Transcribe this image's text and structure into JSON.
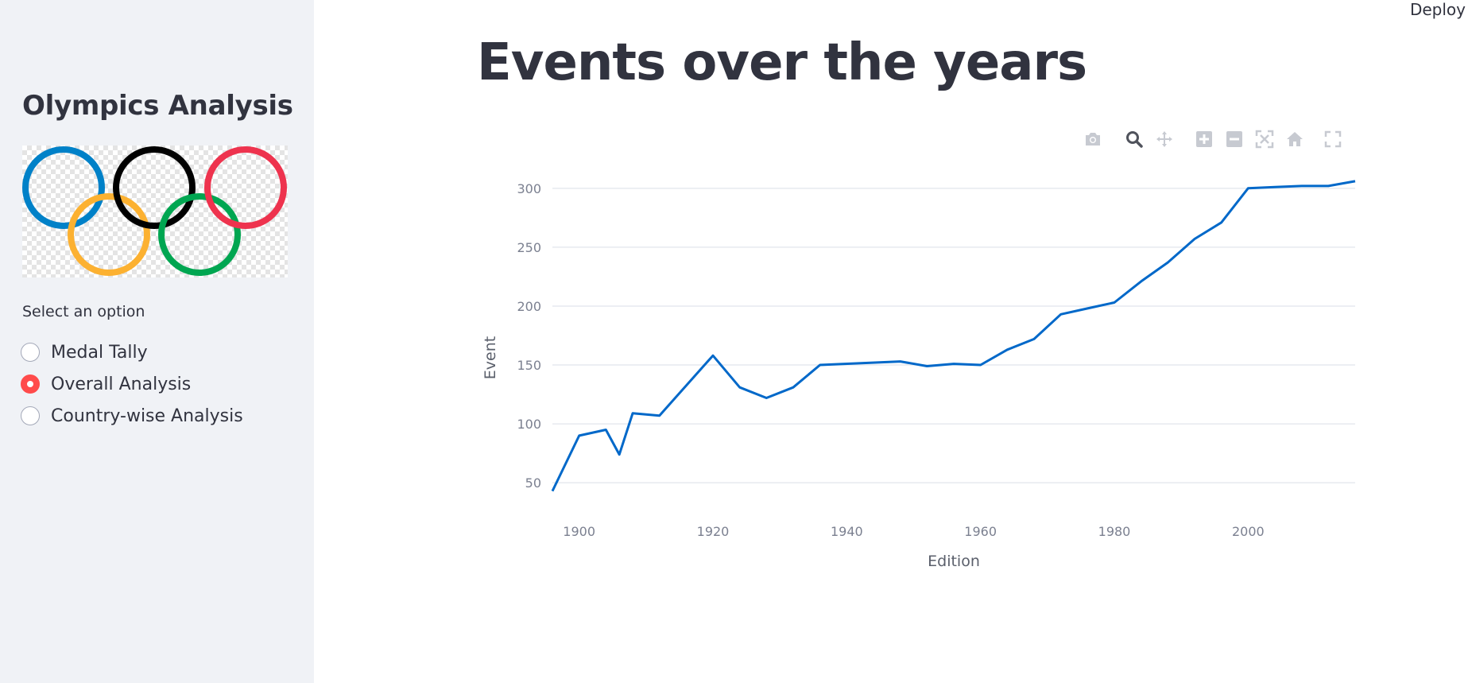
{
  "header": {
    "deploy_label": "Deploy"
  },
  "sidebar": {
    "title": "Olympics Analysis",
    "logo_icon": "olympic-rings-icon",
    "ring_colors": [
      "#0081c8",
      "#fcb131",
      "#000000",
      "#00a651",
      "#ee334e"
    ],
    "radio": {
      "label": "Select an option",
      "options": [
        {
          "label": "Medal Tally",
          "selected": false
        },
        {
          "label": "Overall Analysis",
          "selected": true
        },
        {
          "label": "Country-wise Analysis",
          "selected": false
        }
      ]
    }
  },
  "main": {
    "title": "Events over the years"
  },
  "modebar": {
    "icons": [
      "camera-icon",
      "zoom-icon",
      "pan-icon",
      "zoom-in-icon",
      "zoom-out-icon",
      "autoscale-icon",
      "home-icon",
      "fullscreen-icon"
    ],
    "active": "zoom-icon"
  },
  "chart_data": {
    "type": "line",
    "title": "",
    "xlabel": "Edition",
    "ylabel": "Event",
    "xlim": [
      1896,
      2016
    ],
    "ylim": [
      40,
      310
    ],
    "x_ticks": [
      1900,
      1920,
      1940,
      1960,
      1980,
      2000
    ],
    "y_ticks": [
      50,
      100,
      150,
      200,
      250,
      300
    ],
    "grid": true,
    "color": "#0068c9",
    "series": [
      {
        "x": [
          1896,
          1900,
          1904,
          1906,
          1908,
          1912,
          1920,
          1924,
          1928,
          1932,
          1936,
          1948,
          1952,
          1956,
          1960,
          1964,
          1968,
          1972,
          1976,
          1980,
          1984,
          1988,
          1992,
          1996,
          2000,
          2004,
          2008,
          2012,
          2016
        ],
        "y": [
          43,
          90,
          95,
          74,
          109,
          107,
          158,
          131,
          122,
          131,
          150,
          153,
          149,
          151,
          150,
          163,
          172,
          193,
          198,
          203,
          221,
          237,
          257,
          271,
          300,
          301,
          302,
          302,
          306
        ]
      }
    ]
  }
}
